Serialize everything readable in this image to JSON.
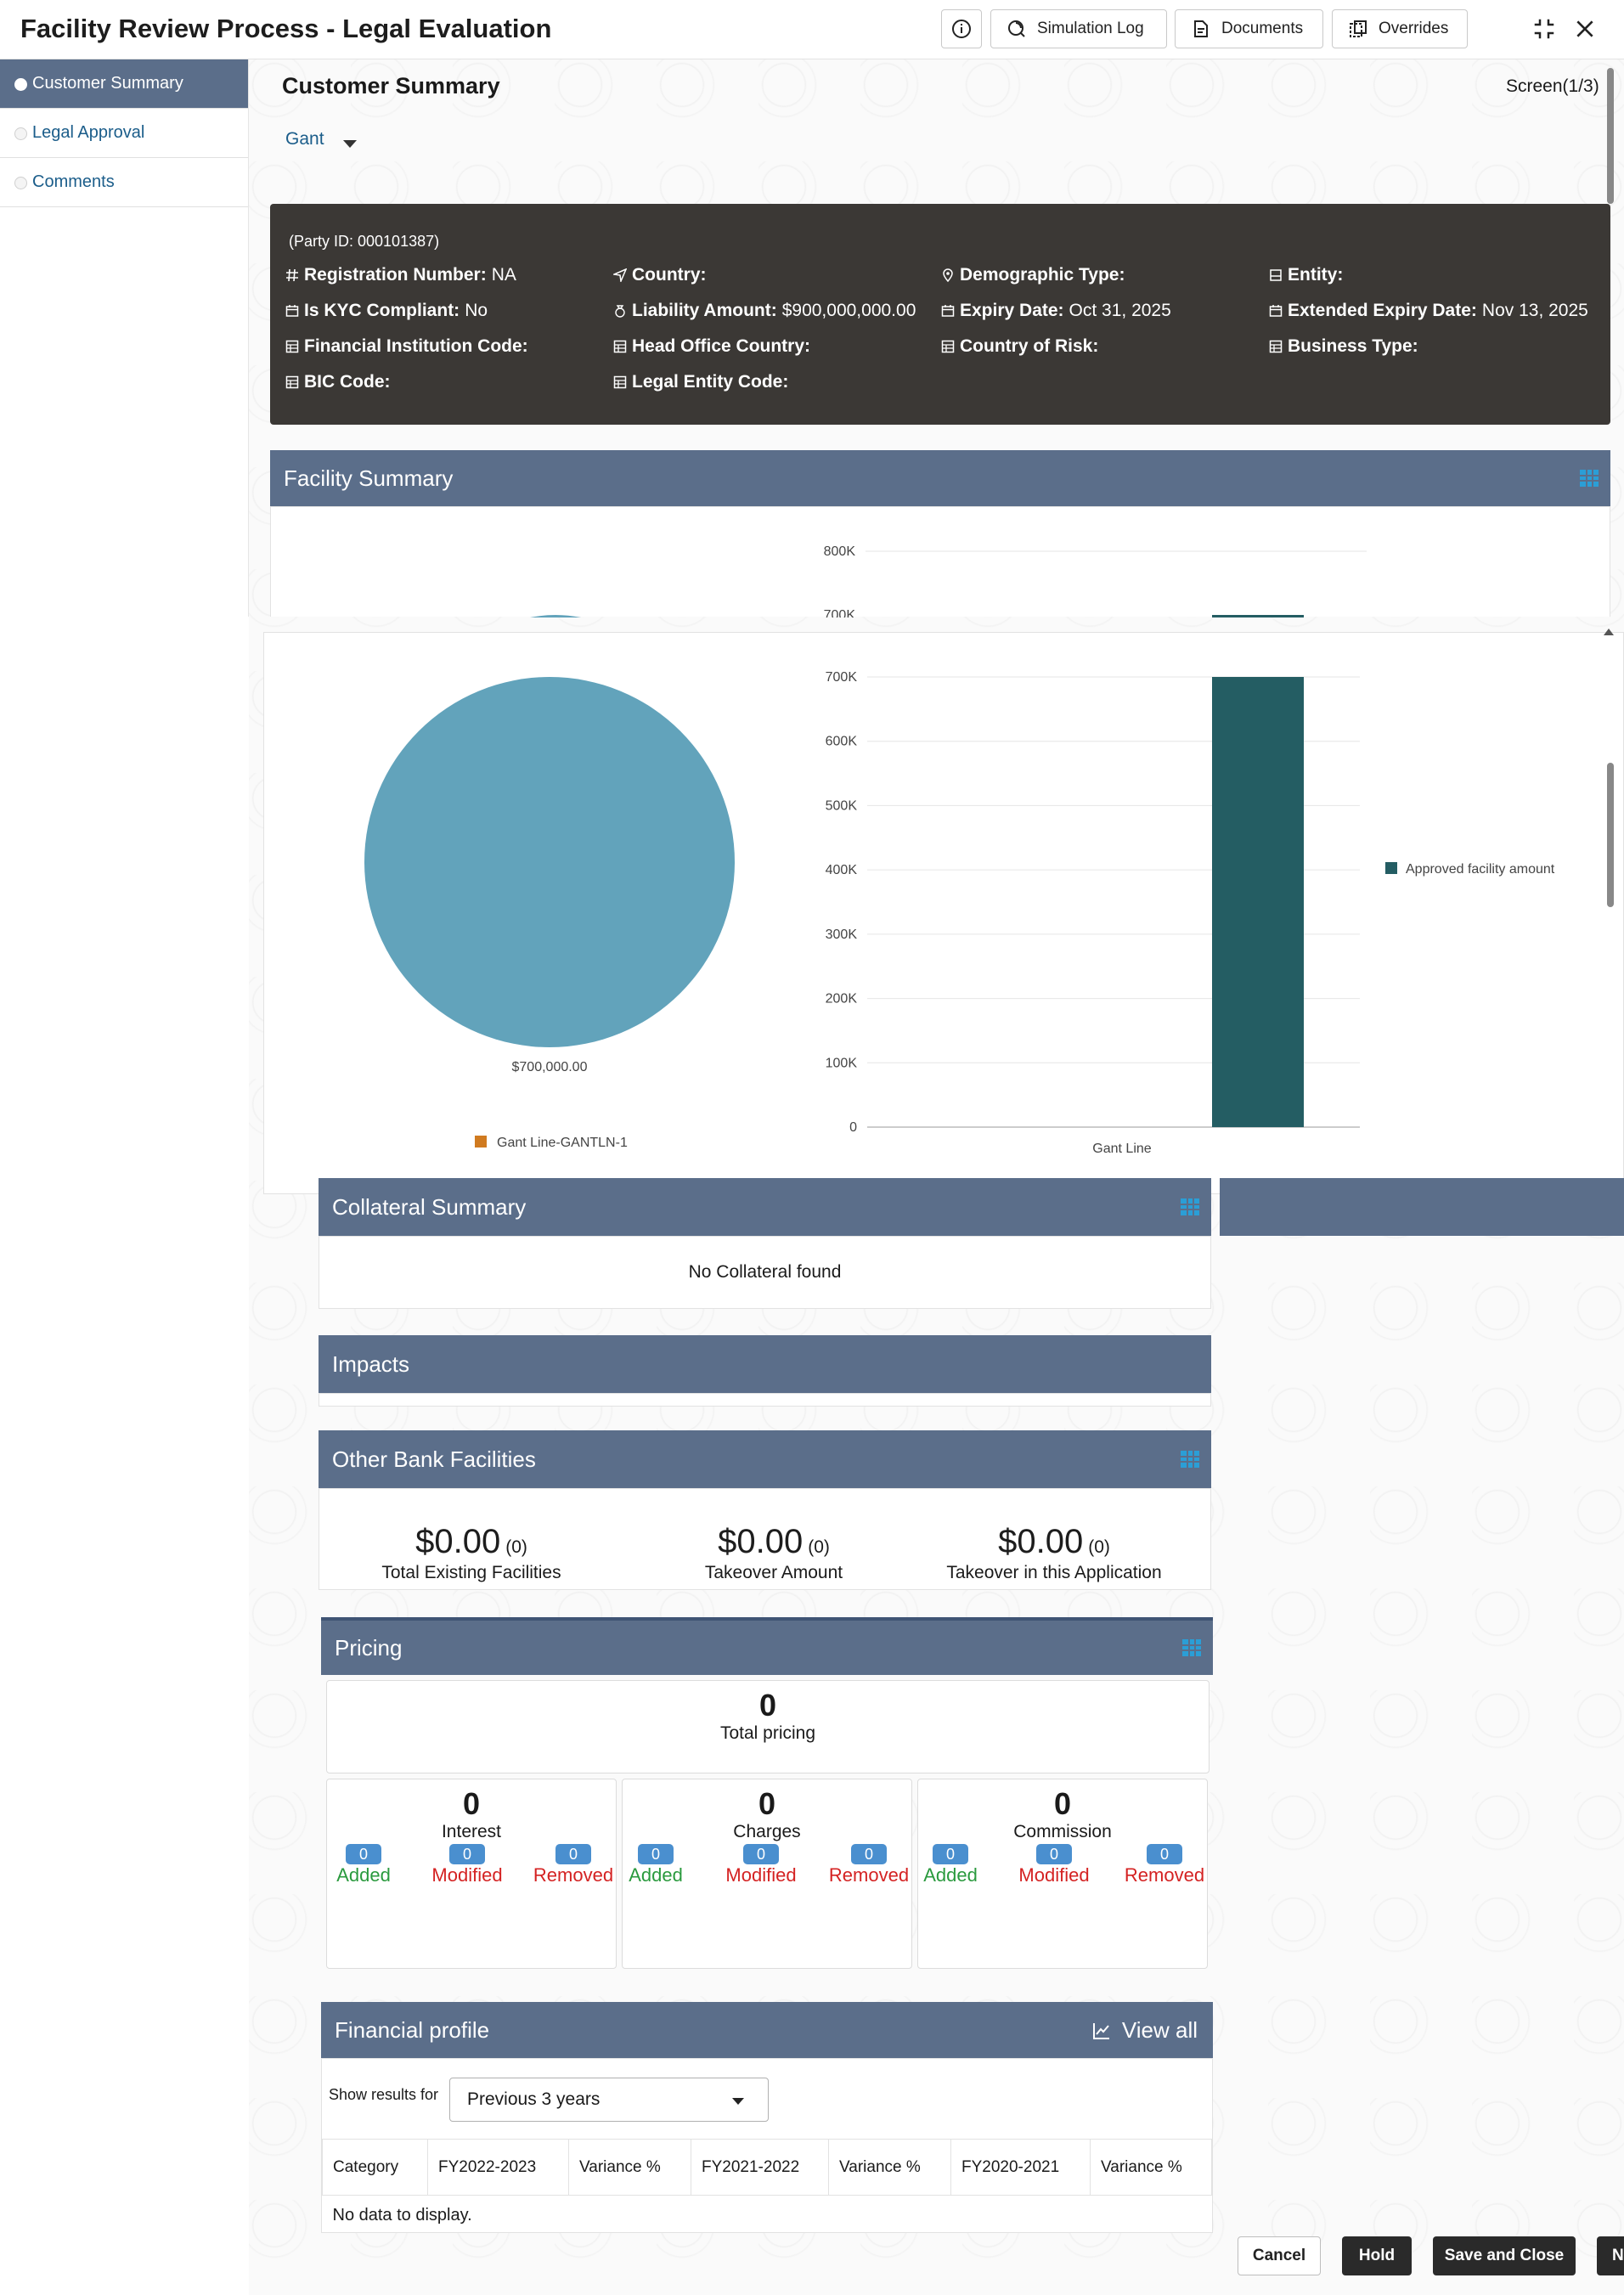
{
  "header": {
    "title": "Facility Review Process - Legal Evaluation",
    "info_label": "",
    "simulation_log_label": "Simulation Log",
    "documents_label": "Documents",
    "overrides_label": "Overrides"
  },
  "sidebar": {
    "items": [
      {
        "label": "Customer Summary",
        "active": true
      },
      {
        "label": "Legal Approval",
        "active": false
      },
      {
        "label": "Comments",
        "active": false
      }
    ]
  },
  "main": {
    "heading": "Customer Summary",
    "screen_count": "Screen(1/3)",
    "customer_name": "Gant"
  },
  "party": {
    "party_id": "(Party ID: 000101387)",
    "registration_number": {
      "label": "Registration Number:",
      "value": "NA"
    },
    "country": {
      "label": "Country:",
      "value": ""
    },
    "demographic_type": {
      "label": "Demographic Type:",
      "value": ""
    },
    "entity": {
      "label": "Entity:",
      "value": ""
    },
    "kyc": {
      "label": "Is KYC Compliant:",
      "value": "No"
    },
    "liability_amount": {
      "label": "Liability Amount:",
      "value": "$900,000,000.00"
    },
    "expiry_date": {
      "label": "Expiry Date:",
      "value": "Oct 31, 2025"
    },
    "extended_expiry_date": {
      "label": "Extended Expiry Date:",
      "value": "Nov 13, 2025"
    },
    "fi_code": {
      "label": "Financial Institution Code:",
      "value": ""
    },
    "head_office_country": {
      "label": "Head Office Country:",
      "value": ""
    },
    "country_of_risk": {
      "label": "Country of Risk:",
      "value": ""
    },
    "business_type": {
      "label": "Business Type:",
      "value": ""
    },
    "bic_code": {
      "label": "BIC Code:",
      "value": ""
    },
    "legal_entity_code": {
      "label": "Legal Entity Code:",
      "value": ""
    }
  },
  "facility_summary": {
    "title": "Facility Summary"
  },
  "chart_data": [
    {
      "type": "pie",
      "slices": [
        {
          "label": "Gant Line-GANTLN-1",
          "value": 700000
        }
      ],
      "data_labels": [
        "$700,000.00"
      ],
      "legend": [
        "Gant Line-GANTLN-1"
      ],
      "colors": [
        "#62a3bb"
      ],
      "legend_color": "#d07a1f",
      "legend_position": "bottom"
    },
    {
      "type": "bar",
      "categories": [
        "Gant Line"
      ],
      "series": [
        {
          "name": "Approved facility amount",
          "values": [
            700000
          ]
        }
      ],
      "y_ticks": [
        "0",
        "100K",
        "200K",
        "300K",
        "400K",
        "500K",
        "600K",
        "700K"
      ],
      "ylim": [
        0,
        700000
      ],
      "grid": true,
      "color": "#245d63",
      "legend_position": "right"
    }
  ],
  "collateral_summary": {
    "title": "Collateral Summary",
    "empty_text": "No Collateral found"
  },
  "impacts": {
    "title": "Impacts"
  },
  "other_bank_facilities": {
    "title": "Other Bank Facilities",
    "stats": [
      {
        "amount": "$0.00",
        "count": "(0)",
        "caption": "Total Existing Facilities"
      },
      {
        "amount": "$0.00",
        "count": "(0)",
        "caption": "Takeover Amount"
      },
      {
        "amount": "$0.00",
        "count": "(0)",
        "caption": "Takeover in this Application"
      }
    ]
  },
  "pricing": {
    "title": "Pricing",
    "total": {
      "value": "0",
      "caption": "Total pricing"
    },
    "groups": [
      {
        "value": "0",
        "caption": "Interest",
        "added": "0",
        "modified": "0",
        "removed": "0"
      },
      {
        "value": "0",
        "caption": "Charges",
        "added": "0",
        "modified": "0",
        "removed": "0"
      },
      {
        "value": "0",
        "caption": "Commission",
        "added": "0",
        "modified": "0",
        "removed": "0"
      }
    ],
    "labels": {
      "added": "Added",
      "modified": "Modified",
      "removed": "Removed"
    }
  },
  "financial_profile": {
    "title": "Financial profile",
    "view_all": "View all",
    "show_results_label": "Show results for",
    "selected_period": "Previous 3 years",
    "columns": [
      "Category",
      "FY2022-2023",
      "Variance %",
      "FY2021-2022",
      "Variance %",
      "FY2020-2021",
      "Variance %"
    ],
    "empty_text": "No data to display."
  },
  "footer": {
    "cancel": "Cancel",
    "hold": "Hold",
    "save_close": "Save and Close",
    "next": "N"
  },
  "colors": {
    "panel_header": "#5b6e8a",
    "party_card": "#3b3835",
    "chip": "#4a8fcf",
    "added": "#2a9a3e",
    "modified_removed": "#d42222"
  }
}
